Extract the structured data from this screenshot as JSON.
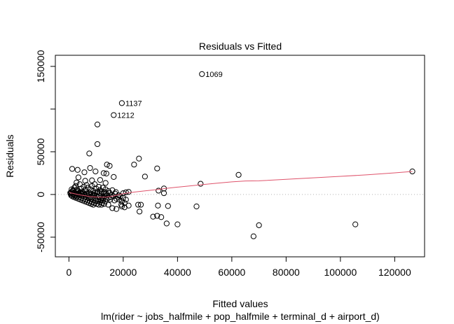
{
  "chart_data": {
    "type": "scatter",
    "title": "Residuals vs Fitted",
    "xlabel": "Fitted values",
    "ylabel": "Residuals",
    "subtitle": "lm(rider ~ jobs_halfmile + pop_halfmile + terminal_d + airport_d)",
    "xlim": [
      -5000,
      131000
    ],
    "ylim": [
      -73000,
      163000
    ],
    "x_ticks": [
      0,
      20000,
      40000,
      60000,
      80000,
      100000,
      120000
    ],
    "x_tick_labels": [
      "0",
      "20000",
      "40000",
      "60000",
      "80000",
      "100000",
      "120000"
    ],
    "y_ticks": [
      -50000,
      0,
      50000,
      150000
    ],
    "y_tick_labels": [
      "-50000",
      "0",
      "50000",
      "150000"
    ],
    "reference_line": {
      "y": 0,
      "style": "dotted",
      "color": "#b3b3b3"
    },
    "smooth_color": "#df536b",
    "point_color": "#000000",
    "grid": false,
    "labeled_points": [
      {
        "label": "1069",
        "x": 49000,
        "y": 141000
      },
      {
        "label": "1137",
        "x": 19500,
        "y": 107000
      },
      {
        "label": "1212",
        "x": 16500,
        "y": 93000
      }
    ],
    "points": [
      [
        49000,
        141000
      ],
      [
        19500,
        107000
      ],
      [
        16500,
        93000
      ],
      [
        10500,
        82000
      ],
      [
        10500,
        59000
      ],
      [
        7500,
        48000
      ],
      [
        25800,
        42000
      ],
      [
        14000,
        35000
      ],
      [
        24000,
        35000
      ],
      [
        15000,
        33500
      ],
      [
        1200,
        30000
      ],
      [
        32500,
        30500
      ],
      [
        3200,
        28800
      ],
      [
        5700,
        26000
      ],
      [
        7800,
        31000
      ],
      [
        9800,
        27000
      ],
      [
        12800,
        25000
      ],
      [
        13800,
        24500
      ],
      [
        62500,
        23000
      ],
      [
        28000,
        21000
      ],
      [
        16500,
        20500
      ],
      [
        3500,
        20000
      ],
      [
        11500,
        17000
      ],
      [
        8500,
        16500
      ],
      [
        6000,
        16000
      ],
      [
        2800,
        14000
      ],
      [
        13500,
        13500
      ],
      [
        48500,
        12500
      ],
      [
        35000,
        7000
      ],
      [
        33000,
        4500
      ],
      [
        21000,
        2500
      ],
      [
        22000,
        3000
      ],
      [
        20000,
        1500
      ],
      [
        126500,
        27000
      ],
      [
        47000,
        -14000
      ],
      [
        35000,
        1500
      ],
      [
        26500,
        -12000
      ],
      [
        25500,
        -12000
      ],
      [
        26000,
        -20000
      ],
      [
        31000,
        -26000
      ],
      [
        32500,
        -25000
      ],
      [
        34000,
        -26500
      ],
      [
        32800,
        -13000
      ],
      [
        36500,
        -13500
      ],
      [
        40000,
        -35000
      ],
      [
        36000,
        -34000
      ],
      [
        22000,
        -13000
      ],
      [
        19500,
        -14000
      ],
      [
        20500,
        -15000
      ],
      [
        17500,
        -17000
      ],
      [
        16000,
        -16000
      ],
      [
        14500,
        -12000
      ],
      [
        12000,
        -12000
      ],
      [
        68000,
        -49000
      ],
      [
        70000,
        -36000
      ],
      [
        105500,
        -35000
      ],
      [
        500,
        2000
      ],
      [
        1000,
        3000
      ],
      [
        1500,
        5000
      ],
      [
        800,
        -1000
      ],
      [
        2000,
        8000
      ],
      [
        2500,
        10000
      ],
      [
        3000,
        6000
      ],
      [
        3500,
        4000
      ],
      [
        4000,
        12000
      ],
      [
        4500,
        7000
      ],
      [
        5000,
        3000
      ],
      [
        5500,
        9000
      ],
      [
        6000,
        5000
      ],
      [
        6500,
        11000
      ],
      [
        7000,
        8000
      ],
      [
        7500,
        2000
      ],
      [
        8000,
        6000
      ],
      [
        8500,
        10000
      ],
      [
        9000,
        4000
      ],
      [
        9500,
        12000
      ],
      [
        10000,
        7000
      ],
      [
        10500,
        3000
      ],
      [
        11000,
        9000
      ],
      [
        11500,
        5000
      ],
      [
        12000,
        1000
      ],
      [
        12500,
        8000
      ],
      [
        13000,
        3000
      ],
      [
        13500,
        6000
      ],
      [
        14000,
        -1000
      ],
      [
        14500,
        4000
      ],
      [
        15000,
        2000
      ],
      [
        15500,
        -3000
      ],
      [
        16000,
        5000
      ],
      [
        16500,
        -2000
      ],
      [
        17000,
        1000
      ],
      [
        17500,
        -5000
      ],
      [
        18000,
        -3000
      ],
      [
        18500,
        -6000
      ],
      [
        19000,
        -2000
      ],
      [
        19500,
        -8000
      ],
      [
        20000,
        -4000
      ],
      [
        20500,
        -10000
      ],
      [
        21000,
        -6000
      ],
      [
        1200,
        -2000
      ],
      [
        1800,
        -3000
      ],
      [
        2200,
        -1500
      ],
      [
        2600,
        -4000
      ],
      [
        3000,
        -2500
      ],
      [
        3400,
        -5000
      ],
      [
        3800,
        -3000
      ],
      [
        4200,
        -6000
      ],
      [
        4600,
        -4000
      ],
      [
        5000,
        -7000
      ],
      [
        5400,
        -5000
      ],
      [
        5800,
        -8000
      ],
      [
        6200,
        -6000
      ],
      [
        6600,
        -9000
      ],
      [
        7000,
        -7000
      ],
      [
        7400,
        -10000
      ],
      [
        7800,
        -8000
      ],
      [
        8200,
        -11000
      ],
      [
        8600,
        -9000
      ],
      [
        9000,
        -12000
      ],
      [
        9400,
        -10000
      ],
      [
        9800,
        -7000
      ],
      [
        10200,
        -11000
      ],
      [
        10600,
        -8000
      ],
      [
        11000,
        -12000
      ],
      [
        11400,
        -9000
      ],
      [
        11800,
        -6000
      ],
      [
        12200,
        -10000
      ],
      [
        12600,
        -7000
      ],
      [
        13000,
        -11000
      ],
      [
        13400,
        -8000
      ],
      [
        13800,
        -5000
      ],
      [
        1000,
        6000
      ],
      [
        1600,
        4000
      ],
      [
        2400,
        1000
      ],
      [
        2900,
        3000
      ],
      [
        3600,
        1500
      ],
      [
        4300,
        2500
      ],
      [
        4900,
        500
      ],
      [
        5300,
        1800
      ],
      [
        5900,
        -500
      ],
      [
        6400,
        1200
      ],
      [
        6900,
        -1500
      ],
      [
        7300,
        800
      ],
      [
        7900,
        -2500
      ],
      [
        8400,
        300
      ],
      [
        8900,
        -3500
      ],
      [
        9300,
        -400
      ],
      [
        9700,
        -4500
      ],
      [
        10100,
        -1200
      ],
      [
        10700,
        -5500
      ],
      [
        11200,
        -2200
      ],
      [
        11700,
        -6500
      ],
      [
        12300,
        -3200
      ],
      [
        12700,
        -4200
      ],
      [
        13200,
        -2000
      ],
      [
        600,
        800
      ],
      [
        900,
        1800
      ],
      [
        1300,
        1000
      ],
      [
        1700,
        -500
      ],
      [
        2100,
        2500
      ],
      [
        2700,
        -1000
      ],
      [
        3300,
        800
      ],
      [
        3900,
        -800
      ],
      [
        4400,
        1500
      ],
      [
        5100,
        -1800
      ],
      [
        5600,
        600
      ],
      [
        6100,
        -2800
      ],
      [
        6700,
        300
      ],
      [
        7200,
        -3800
      ],
      [
        7700,
        -200
      ],
      [
        8300,
        -4800
      ],
      [
        8800,
        -1000
      ],
      [
        9600,
        1800
      ],
      [
        10400,
        2600
      ],
      [
        11300,
        1500
      ],
      [
        12100,
        3500
      ],
      [
        12900,
        500
      ],
      [
        13700,
        1800
      ],
      [
        14600,
        -4000
      ],
      [
        15200,
        -6000
      ],
      [
        15800,
        -1000
      ],
      [
        16800,
        -7000
      ],
      [
        17300,
        2800
      ],
      [
        18300,
        -1000
      ],
      [
        19300,
        -12000
      ]
    ],
    "smooth": [
      [
        200,
        2200
      ],
      [
        2000,
        1000
      ],
      [
        4000,
        -500
      ],
      [
        6000,
        -1500
      ],
      [
        8000,
        -2500
      ],
      [
        10000,
        -3000
      ],
      [
        12000,
        -3200
      ],
      [
        14000,
        -3000
      ],
      [
        16000,
        -2000
      ],
      [
        18000,
        -500
      ],
      [
        20000,
        1000
      ],
      [
        24000,
        2800
      ],
      [
        28000,
        4200
      ],
      [
        32000,
        5600
      ],
      [
        36000,
        7200
      ],
      [
        40000,
        8600
      ],
      [
        45000,
        10200
      ],
      [
        50000,
        11800
      ],
      [
        55000,
        13400
      ],
      [
        60000,
        14800
      ],
      [
        65000,
        15800
      ],
      [
        70000,
        16000
      ],
      [
        80000,
        17800
      ],
      [
        90000,
        19500
      ],
      [
        100000,
        21200
      ],
      [
        110000,
        23000
      ],
      [
        120000,
        25300
      ],
      [
        126500,
        27000
      ]
    ]
  }
}
